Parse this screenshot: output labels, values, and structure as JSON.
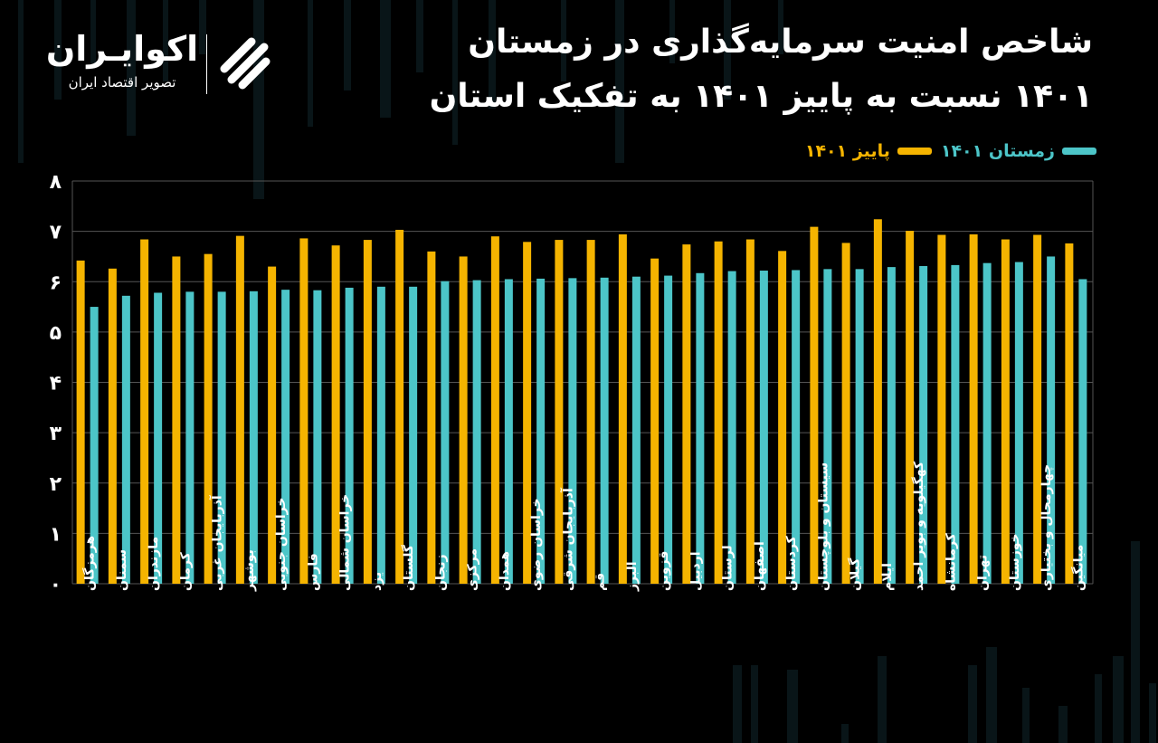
{
  "header": {
    "title_line1": "شاخص امنیت سرمایه‌گذاری در زمستان",
    "title_line2": "۱۴۰۱ نسبت به پاییز ۱۴۰۱ به تفکیک استان"
  },
  "logo": {
    "name": "اکوایـران",
    "tagline": "تصویر اقتصاد ایران",
    "mark_icon": "ecoiran-logo-icon"
  },
  "colors": {
    "autumn": "#F5B400",
    "winter": "#4CC5C8",
    "background": "#000000",
    "grid": "#555555"
  },
  "chart_data": {
    "type": "bar",
    "title": "شاخص امنیت سرمایه‌گذاری در زمستان ۱۴۰۱ نسبت به پاییز ۱۴۰۱ به تفکیک استان",
    "xlabel": "",
    "ylabel": "",
    "ylim": [
      0,
      8
    ],
    "yticks": [
      0,
      1,
      2,
      3,
      4,
      5,
      6,
      7,
      8
    ],
    "ytick_labels": [
      "۰",
      "۱",
      "۲",
      "۳",
      "۴",
      "۵",
      "۶",
      "۷",
      "۸"
    ],
    "grid": true,
    "legend_position": "top-right",
    "categories": [
      "هرمزگان",
      "سمنان",
      "مازندران",
      "کرمان",
      "آذربایجان غربی",
      "بوشهر",
      "خراسان جنوبی",
      "فارس",
      "خراسان شمالی",
      "یزد",
      "گلستان",
      "زنجان",
      "مرکزی",
      "همدان",
      "خراسان رضوی",
      "آذربایجان شرقی",
      "قم",
      "البرز",
      "قزوین",
      "اردبیل",
      "لرستان",
      "اصفهان",
      "کردستان",
      "سیستان و بلوچستان",
      "گیلان",
      "ایلام",
      "کهگیلویه و بویر احمد",
      "کرمانشاه",
      "تهران",
      "خوزستان",
      "چهارمحال و بختیاری",
      "میانگین"
    ],
    "series": [
      {
        "name": "پاییز ۱۴۰۱",
        "color": "#F5B400",
        "values": [
          6.42,
          6.26,
          6.84,
          6.5,
          6.55,
          6.91,
          6.3,
          6.86,
          6.72,
          6.83,
          7.03,
          6.6,
          6.5,
          6.9,
          6.79,
          6.83,
          6.83,
          6.94,
          6.46,
          6.74,
          6.8,
          6.84,
          6.61,
          7.09,
          6.77,
          7.24,
          7.01,
          6.93,
          6.94,
          6.84,
          6.93,
          6.76
        ]
      },
      {
        "name": "زمستان ۱۴۰۱",
        "color": "#4CC5C8",
        "values": [
          5.5,
          5.72,
          5.78,
          5.8,
          5.8,
          5.81,
          5.84,
          5.83,
          5.88,
          5.9,
          5.9,
          6.01,
          6.03,
          6.05,
          6.06,
          6.07,
          6.08,
          6.1,
          6.12,
          6.17,
          6.21,
          6.22,
          6.23,
          6.25,
          6.25,
          6.29,
          6.31,
          6.33,
          6.37,
          6.39,
          6.5,
          6.05
        ]
      }
    ]
  }
}
